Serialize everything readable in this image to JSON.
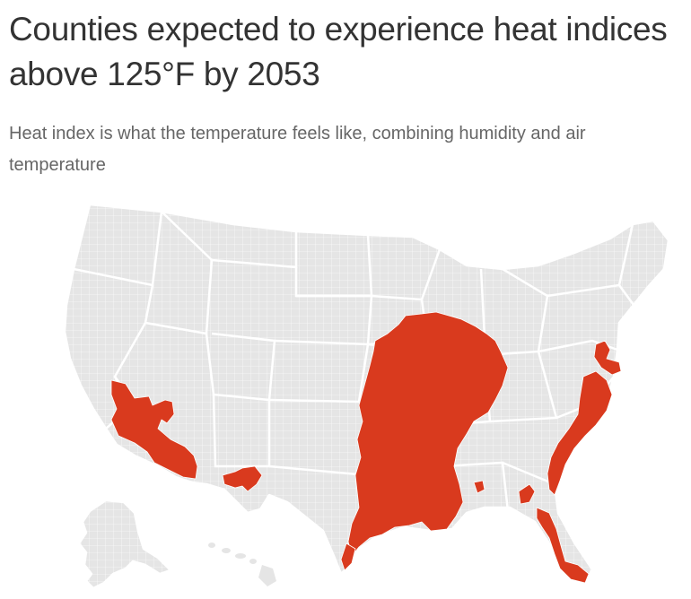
{
  "header": {
    "title": "Counties expected to experience heat indices above 125°F by 2053",
    "subtitle": "Heat index is what the temperature feels like, combining humidity and air temperature"
  },
  "map": {
    "base_color": "#e5e5e5",
    "highlight_color": "#d93a1e",
    "border_color": "#ffffff"
  }
}
